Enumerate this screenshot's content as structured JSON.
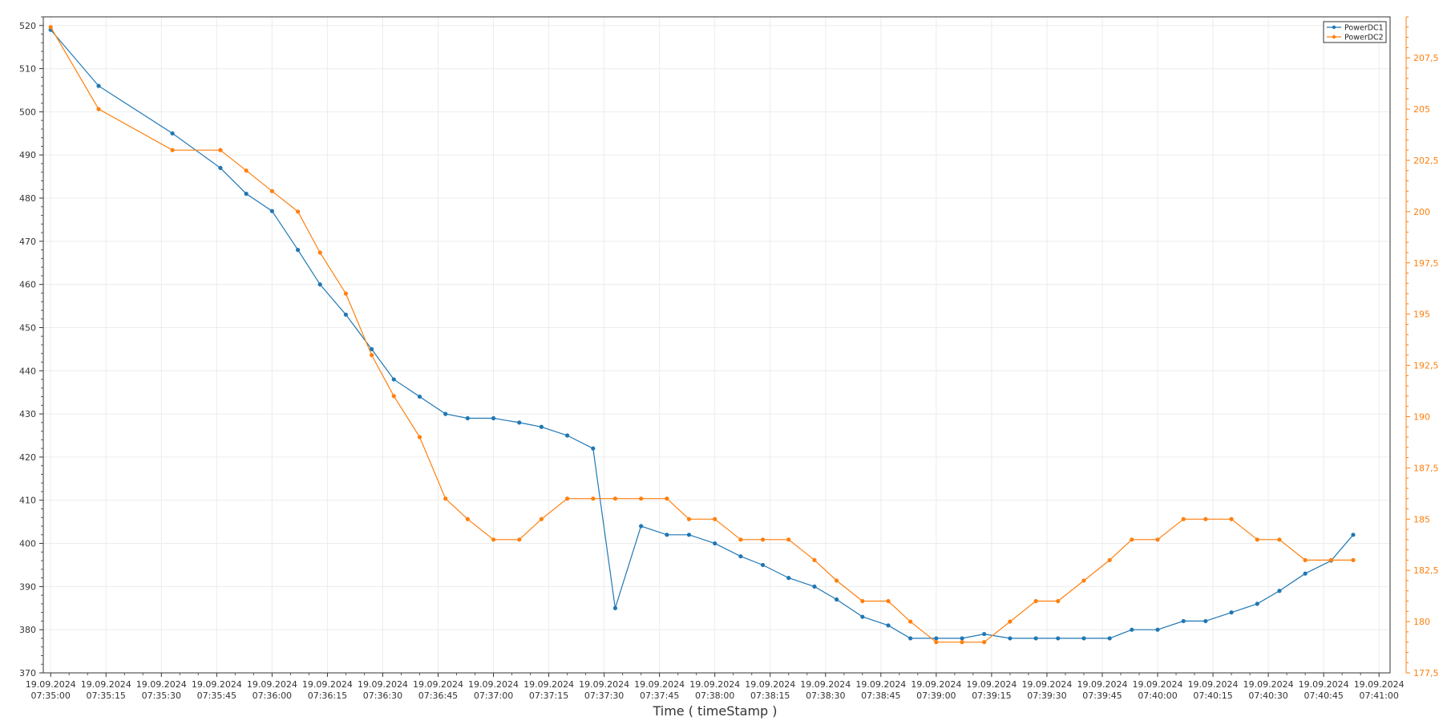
{
  "chart_data": {
    "type": "line",
    "xlabel": "Time ( timeStamp )",
    "x_ticks": [
      {
        "date": "19.09.2024",
        "time": "07:35:00"
      },
      {
        "date": "19.09.2024",
        "time": "07:35:15"
      },
      {
        "date": "19.09.2024",
        "time": "07:35:30"
      },
      {
        "date": "19.09.2024",
        "time": "07:35:45"
      },
      {
        "date": "19.09.2024",
        "time": "07:36:00"
      },
      {
        "date": "19.09.2024",
        "time": "07:36:15"
      },
      {
        "date": "19.09.2024",
        "time": "07:36:30"
      },
      {
        "date": "19.09.2024",
        "time": "07:36:45"
      },
      {
        "date": "19.09.2024",
        "time": "07:37:00"
      },
      {
        "date": "19.09.2024",
        "time": "07:37:15"
      },
      {
        "date": "19.09.2024",
        "time": "07:37:30"
      },
      {
        "date": "19.09.2024",
        "time": "07:37:45"
      },
      {
        "date": "19.09.2024",
        "time": "07:38:00"
      },
      {
        "date": "19.09.2024",
        "time": "07:38:15"
      },
      {
        "date": "19.09.2024",
        "time": "07:38:30"
      },
      {
        "date": "19.09.2024",
        "time": "07:38:45"
      },
      {
        "date": "19.09.2024",
        "time": "07:39:00"
      },
      {
        "date": "19.09.2024",
        "time": "07:39:15"
      },
      {
        "date": "19.09.2024",
        "time": "07:39:30"
      },
      {
        "date": "19.09.2024",
        "time": "07:39:45"
      },
      {
        "date": "19.09.2024",
        "time": "07:40:00"
      },
      {
        "date": "19.09.2024",
        "time": "07:40:15"
      },
      {
        "date": "19.09.2024",
        "time": "07:40:30"
      },
      {
        "date": "19.09.2024",
        "time": "07:40:45"
      },
      {
        "date": "19.09.2024",
        "time": "07:41:00"
      }
    ],
    "x_range": [
      "07:34:58",
      "07:41:03"
    ],
    "y_left": {
      "range": [
        370,
        522
      ],
      "ticks": [
        370,
        380,
        390,
        400,
        410,
        420,
        430,
        440,
        450,
        460,
        470,
        480,
        490,
        500,
        510,
        520
      ]
    },
    "y_right": {
      "range": [
        177.5,
        209.5
      ],
      "ticks": [
        177.5,
        180,
        182.5,
        185,
        187.5,
        190,
        192.5,
        195,
        197.5,
        200,
        202.5,
        205,
        207.5
      ],
      "tick_labels": [
        "177,5",
        "180",
        "182,5",
        "185",
        "187,5",
        "190",
        "192,5",
        "195",
        "197,5",
        "200",
        "202,5",
        "205",
        "207,5"
      ]
    },
    "grid": true,
    "legend_position": "top-right",
    "series": [
      {
        "name": "PowerDC1",
        "axis": "left",
        "color": "#1f77b4",
        "x": [
          "07:35:00",
          "07:35:13",
          "07:35:33",
          "07:35:46",
          "07:35:53",
          "07:36:00",
          "07:36:07",
          "07:36:13",
          "07:36:20",
          "07:36:27",
          "07:36:33",
          "07:36:40",
          "07:36:47",
          "07:36:53",
          "07:37:00",
          "07:37:07",
          "07:37:13",
          "07:37:20",
          "07:37:27",
          "07:37:33",
          "07:37:40",
          "07:37:47",
          "07:37:53",
          "07:38:00",
          "07:38:07",
          "07:38:13",
          "07:38:20",
          "07:38:27",
          "07:38:33",
          "07:38:40",
          "07:38:47",
          "07:38:53",
          "07:39:00",
          "07:39:07",
          "07:39:13",
          "07:39:20",
          "07:39:27",
          "07:39:33",
          "07:39:40",
          "07:39:47",
          "07:39:53",
          "07:40:00",
          "07:40:07",
          "07:40:13",
          "07:40:20",
          "07:40:27",
          "07:40:33",
          "07:40:40",
          "07:40:47",
          "07:40:53"
        ],
        "values": [
          519,
          506,
          495,
          487,
          481,
          477,
          468,
          460,
          453,
          445,
          438,
          434,
          430,
          429,
          429,
          428,
          427,
          425,
          422,
          385,
          404,
          402,
          402,
          400,
          397,
          395,
          392,
          390,
          387,
          383,
          381,
          378,
          378,
          378,
          379,
          378,
          378,
          378,
          378,
          378,
          380,
          380,
          382,
          382,
          384,
          386,
          389,
          393,
          396,
          402
        ]
      },
      {
        "name": "PowerDC2",
        "axis": "right",
        "color": "#ff7f0e",
        "x": [
          "07:35:00",
          "07:35:13",
          "07:35:33",
          "07:35:46",
          "07:35:53",
          "07:36:00",
          "07:36:07",
          "07:36:13",
          "07:36:20",
          "07:36:27",
          "07:36:33",
          "07:36:40",
          "07:36:47",
          "07:36:53",
          "07:37:00",
          "07:37:07",
          "07:37:13",
          "07:37:20",
          "07:37:27",
          "07:37:33",
          "07:37:40",
          "07:37:47",
          "07:37:53",
          "07:38:00",
          "07:38:07",
          "07:38:13",
          "07:38:20",
          "07:38:27",
          "07:38:33",
          "07:38:40",
          "07:38:47",
          "07:38:53",
          "07:39:00",
          "07:39:07",
          "07:39:13",
          "07:39:20",
          "07:39:27",
          "07:39:33",
          "07:39:40",
          "07:39:47",
          "07:39:53",
          "07:40:00",
          "07:40:07",
          "07:40:13",
          "07:40:20",
          "07:40:27",
          "07:40:33",
          "07:40:40",
          "07:40:47",
          "07:40:53"
        ],
        "values": [
          209,
          205,
          203,
          203,
          202,
          201,
          200,
          198,
          196,
          193,
          191,
          189,
          186,
          185,
          184,
          184,
          185,
          186,
          186,
          186,
          186,
          186,
          185,
          185,
          184,
          184,
          184,
          183,
          182,
          181,
          181,
          180,
          179,
          179,
          179,
          180,
          181,
          181,
          182,
          183,
          184,
          184,
          185,
          185,
          185,
          184,
          184,
          183,
          183,
          183
        ]
      }
    ]
  }
}
